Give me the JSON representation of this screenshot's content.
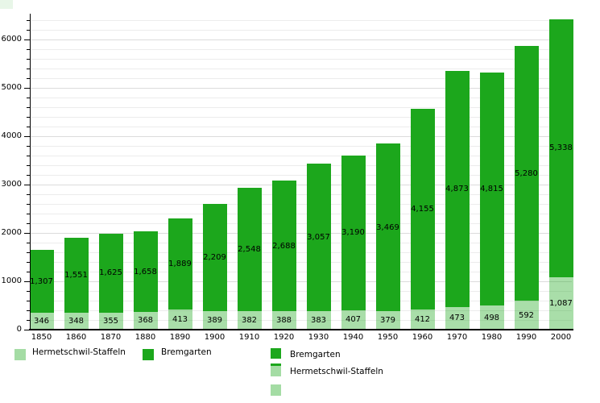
{
  "chart_data": {
    "type": "bar",
    "stacked": true,
    "title": "",
    "xlabel": "",
    "ylabel": "",
    "categories": [
      "1850",
      "1860",
      "1870",
      "1880",
      "1890",
      "1900",
      "1910",
      "1920",
      "1930",
      "1940",
      "1950",
      "1960",
      "1970",
      "1980",
      "1990",
      "2000"
    ],
    "series": [
      {
        "name": "Hermetschwil-Staffeln",
        "color": "#A9DEA9",
        "values": [
          346,
          348,
          355,
          368,
          413,
          389,
          382,
          388,
          383,
          407,
          379,
          412,
          473,
          498,
          592,
          1087
        ]
      },
      {
        "name": "Bremgarten",
        "color": "#1CA71C",
        "values": [
          1307,
          1551,
          1625,
          1658,
          1889,
          2209,
          2548,
          2688,
          3057,
          3190,
          3469,
          4155,
          4873,
          4815,
          5280,
          5338
        ]
      }
    ],
    "value_labels_visible": true,
    "ylim": [
      0,
      6533
    ],
    "y_tick_labels": [
      0,
      1000,
      2000,
      3000,
      4000,
      5000,
      6000
    ],
    "y_minor_step": 200,
    "grid": true,
    "legend_position": "bottom"
  },
  "legend_row": {
    "items": [
      {
        "label": "Hermetschwil-Staffeln",
        "swatch": "light"
      },
      {
        "label": "Bremgarten",
        "swatch": "dark"
      }
    ]
  },
  "legend_column": {
    "items": [
      {
        "label": "Bremgarten",
        "swatch": "dark"
      },
      {
        "label": "Hermetschwil-Staffeln",
        "swatch": "light-with-dark-top"
      },
      {
        "label": "",
        "swatch": "light"
      }
    ]
  },
  "colors": {
    "bremgarten": "#1CA71C",
    "hermetschwil_staffeln": "#A9DEA9",
    "axis": "#000000",
    "grid_major": "#DCDCDC",
    "grid_minor": "#ECECEC",
    "background": "#FFFFFF"
  }
}
